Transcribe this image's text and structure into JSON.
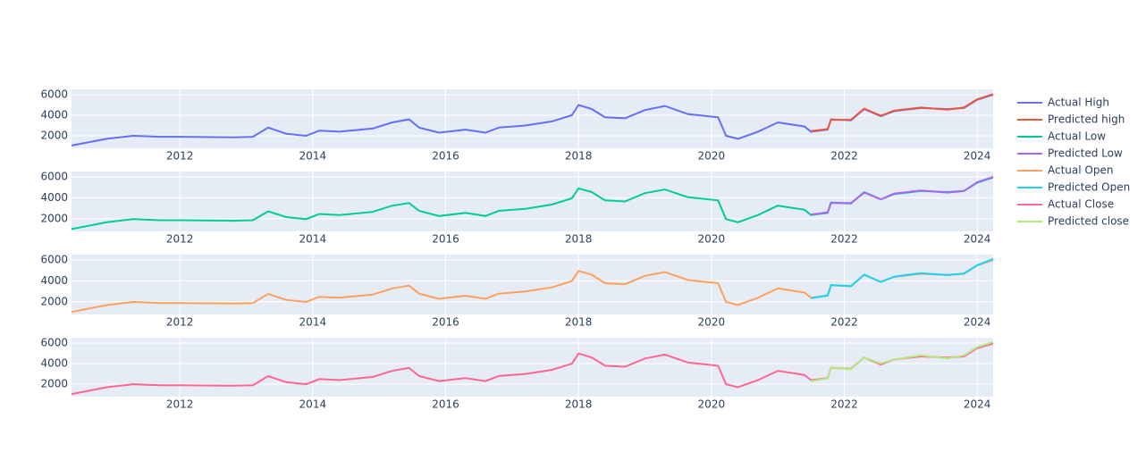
{
  "chart_data": [
    {
      "type": "line",
      "xlim": [
        2010.37,
        2024.24
      ],
      "ylim": [
        780,
        6520
      ],
      "xticks": [
        2012,
        2014,
        2016,
        2018,
        2020,
        2022,
        2024
      ],
      "yticks": [
        2000,
        4000,
        6000
      ],
      "grid": true,
      "x": [
        2010.37,
        2010.9,
        2011.3,
        2011.7,
        2012.0,
        2012.8,
        2013.1,
        2013.33,
        2013.6,
        2013.9,
        2014.1,
        2014.4,
        2014.9,
        2015.2,
        2015.45,
        2015.6,
        2015.9,
        2016.3,
        2016.6,
        2016.8,
        2017.2,
        2017.6,
        2017.9,
        2018.0,
        2018.2,
        2018.4,
        2018.7,
        2019.0,
        2019.3,
        2019.65,
        2020.1,
        2020.22,
        2020.4,
        2020.7,
        2021.0,
        2021.4,
        2021.5,
        2021.75,
        2021.8,
        2022.1,
        2022.3,
        2022.55,
        2022.75,
        2023.15,
        2023.55,
        2023.8,
        2024.0,
        2024.24
      ],
      "series": [
        {
          "name": "Actual High",
          "color": "#636efa",
          "values": [
            1050,
            1700,
            2000,
            1900,
            1900,
            1850,
            1900,
            2800,
            2200,
            2000,
            2500,
            2400,
            2700,
            3300,
            3600,
            2800,
            2300,
            2600,
            2300,
            2800,
            3000,
            3400,
            4000,
            5000,
            4600,
            3800,
            3700,
            4500,
            4900,
            4100,
            3800,
            2000,
            1700,
            2400,
            3300,
            2900,
            2400,
            2600,
            3600,
            3500,
            4600,
            3900,
            4400,
            4700,
            4600,
            4700,
            5500,
            6000
          ]
        },
        {
          "name": "Predicted high",
          "color": "#ef553b",
          "values": [
            null,
            null,
            null,
            null,
            null,
            null,
            null,
            null,
            null,
            null,
            null,
            null,
            null,
            null,
            null,
            null,
            null,
            null,
            null,
            null,
            null,
            null,
            null,
            null,
            null,
            null,
            null,
            null,
            null,
            null,
            null,
            null,
            null,
            null,
            null,
            null,
            2450,
            2650,
            3550,
            3550,
            4650,
            3950,
            4450,
            4750,
            4550,
            4750,
            5550,
            6050
          ]
        }
      ]
    },
    {
      "type": "line",
      "xlim": [
        2010.37,
        2024.24
      ],
      "ylim": [
        780,
        6520
      ],
      "xticks": [
        2012,
        2014,
        2016,
        2018,
        2020,
        2022,
        2024
      ],
      "yticks": [
        2000,
        4000,
        6000
      ],
      "grid": true,
      "x": [
        2010.37,
        2010.9,
        2011.3,
        2011.7,
        2012.0,
        2012.8,
        2013.1,
        2013.33,
        2013.6,
        2013.9,
        2014.1,
        2014.4,
        2014.9,
        2015.2,
        2015.45,
        2015.6,
        2015.9,
        2016.3,
        2016.6,
        2016.8,
        2017.2,
        2017.6,
        2017.9,
        2018.0,
        2018.2,
        2018.4,
        2018.7,
        2019.0,
        2019.3,
        2019.65,
        2020.1,
        2020.22,
        2020.4,
        2020.7,
        2021.0,
        2021.4,
        2021.5,
        2021.75,
        2021.8,
        2022.1,
        2022.3,
        2022.55,
        2022.75,
        2023.15,
        2023.55,
        2023.8,
        2024.0,
        2024.24
      ],
      "series": [
        {
          "name": "Actual Low",
          "color": "#00cc96",
          "values": [
            1000,
            1650,
            1950,
            1850,
            1850,
            1800,
            1850,
            2700,
            2150,
            1950,
            2450,
            2350,
            2650,
            3250,
            3500,
            2750,
            2250,
            2550,
            2250,
            2750,
            2950,
            3350,
            3950,
            4900,
            4550,
            3750,
            3650,
            4450,
            4800,
            4050,
            3750,
            1950,
            1650,
            2350,
            3250,
            2850,
            2350,
            2550,
            3550,
            3450,
            4550,
            3850,
            4350,
            4650,
            4550,
            4650,
            5450,
            5950
          ]
        },
        {
          "name": "Predicted Low",
          "color": "#ab63fa",
          "values": [
            null,
            null,
            null,
            null,
            null,
            null,
            null,
            null,
            null,
            null,
            null,
            null,
            null,
            null,
            null,
            null,
            null,
            null,
            null,
            null,
            null,
            null,
            null,
            null,
            null,
            null,
            null,
            null,
            null,
            null,
            null,
            null,
            null,
            null,
            null,
            null,
            2400,
            2600,
            3500,
            3500,
            4500,
            3850,
            4400,
            4700,
            4500,
            4650,
            5500,
            6000
          ]
        }
      ]
    },
    {
      "type": "line",
      "xlim": [
        2010.37,
        2024.24
      ],
      "ylim": [
        780,
        6520
      ],
      "xticks": [
        2012,
        2014,
        2016,
        2018,
        2020,
        2022,
        2024
      ],
      "yticks": [
        2000,
        4000,
        6000
      ],
      "grid": true,
      "x": [
        2010.37,
        2010.9,
        2011.3,
        2011.7,
        2012.0,
        2012.8,
        2013.1,
        2013.33,
        2013.6,
        2013.9,
        2014.1,
        2014.4,
        2014.9,
        2015.2,
        2015.45,
        2015.6,
        2015.9,
        2016.3,
        2016.6,
        2016.8,
        2017.2,
        2017.6,
        2017.9,
        2018.0,
        2018.2,
        2018.4,
        2018.7,
        2019.0,
        2019.3,
        2019.65,
        2020.1,
        2020.22,
        2020.4,
        2020.7,
        2021.0,
        2021.4,
        2021.5,
        2021.75,
        2021.8,
        2022.1,
        2022.3,
        2022.55,
        2022.75,
        2023.15,
        2023.55,
        2023.8,
        2024.0,
        2024.24
      ],
      "series": [
        {
          "name": "Actual Open",
          "color": "#ffa15a",
          "values": [
            1020,
            1680,
            1980,
            1880,
            1880,
            1830,
            1880,
            2750,
            2180,
            1980,
            2480,
            2380,
            2680,
            3280,
            3550,
            2780,
            2280,
            2580,
            2280,
            2780,
            2980,
            3380,
            3980,
            4950,
            4580,
            3780,
            3680,
            4480,
            4850,
            4080,
            3780,
            1980,
            1680,
            2380,
            3280,
            2880,
            2380,
            2580,
            3580,
            3480,
            4580,
            3880,
            4380,
            4680,
            4580,
            4680,
            5480,
            6000
          ]
        },
        {
          "name": "Predicted Open",
          "color": "#19d3f3",
          "values": [
            null,
            null,
            null,
            null,
            null,
            null,
            null,
            null,
            null,
            null,
            null,
            null,
            null,
            null,
            null,
            null,
            null,
            null,
            null,
            null,
            null,
            null,
            null,
            null,
            null,
            null,
            null,
            null,
            null,
            null,
            null,
            null,
            null,
            null,
            null,
            null,
            2350,
            2600,
            3600,
            3500,
            4600,
            3900,
            4400,
            4750,
            4550,
            4700,
            5500,
            6100
          ]
        }
      ]
    },
    {
      "type": "line",
      "xlim": [
        2010.37,
        2024.24
      ],
      "ylim": [
        780,
        6520
      ],
      "xticks": [
        2012,
        2014,
        2016,
        2018,
        2020,
        2022,
        2024
      ],
      "yticks": [
        2000,
        4000,
        6000
      ],
      "grid": true,
      "x": [
        2010.37,
        2010.9,
        2011.3,
        2011.7,
        2012.0,
        2012.8,
        2013.1,
        2013.33,
        2013.6,
        2013.9,
        2014.1,
        2014.4,
        2014.9,
        2015.2,
        2015.45,
        2015.6,
        2015.9,
        2016.3,
        2016.6,
        2016.8,
        2017.2,
        2017.6,
        2017.9,
        2018.0,
        2018.2,
        2018.4,
        2018.7,
        2019.0,
        2019.3,
        2019.65,
        2020.1,
        2020.22,
        2020.4,
        2020.7,
        2021.0,
        2021.4,
        2021.5,
        2021.75,
        2021.8,
        2022.1,
        2022.3,
        2022.55,
        2022.75,
        2023.15,
        2023.55,
        2023.8,
        2024.0,
        2024.24
      ],
      "series": [
        {
          "name": "Actual Close",
          "color": "#ff6692",
          "values": [
            1030,
            1690,
            1990,
            1890,
            1890,
            1840,
            1890,
            2780,
            2190,
            1990,
            2490,
            2390,
            2690,
            3290,
            3580,
            2790,
            2290,
            2590,
            2290,
            2790,
            2990,
            3390,
            3990,
            4980,
            4590,
            3790,
            3690,
            4490,
            4880,
            4090,
            3790,
            1990,
            1690,
            2390,
            3290,
            2890,
            2390,
            2590,
            3590,
            3490,
            4590,
            3890,
            4390,
            4690,
            4590,
            4690,
            5490,
            5950
          ]
        },
        {
          "name": "Predicted close",
          "color": "#b6e880",
          "values": [
            null,
            null,
            null,
            null,
            null,
            null,
            null,
            null,
            null,
            null,
            null,
            null,
            null,
            null,
            null,
            null,
            null,
            null,
            null,
            null,
            null,
            null,
            null,
            null,
            null,
            null,
            null,
            null,
            null,
            null,
            null,
            null,
            null,
            null,
            null,
            null,
            2300,
            2550,
            3600,
            3450,
            4600,
            4000,
            4400,
            4800,
            4500,
            4800,
            5600,
            6100
          ]
        }
      ]
    }
  ]
}
